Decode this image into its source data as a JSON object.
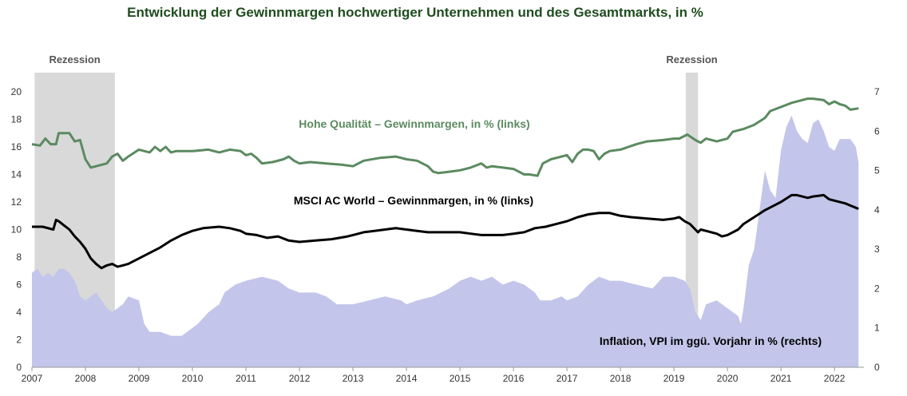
{
  "chart_data": {
    "type": "line",
    "title": "Entwicklung der Gewinnmargen hochwertiger Unternehmen und des Gesamtmarkts, in %",
    "x_range": [
      2007.0,
      2022.55
    ],
    "y_left": {
      "range": [
        0,
        20
      ],
      "ticks": [
        "0",
        "2",
        "4",
        "6",
        "8",
        "10",
        "12",
        "14",
        "16",
        "18",
        "20"
      ]
    },
    "y_right": {
      "range": [
        0,
        7
      ],
      "ticks": [
        "0",
        "1",
        "2",
        "3",
        "4",
        "5",
        "6",
        "7"
      ]
    },
    "x_ticks": [
      "2007",
      "2008",
      "2009",
      "2010",
      "2011",
      "2012",
      "2013",
      "2014",
      "2015",
      "2016",
      "2017",
      "2018",
      "2019",
      "2020",
      "2021",
      "2022"
    ],
    "grid": false,
    "recessions": [
      {
        "label": "Rezession",
        "start": 2007.05,
        "end": 2008.55
      },
      {
        "label": "Rezession",
        "start": 2019.22,
        "end": 2019.45
      }
    ],
    "colors": {
      "quality": "#5b8a60",
      "msci": "#000000",
      "inflation": "#c3c6ea",
      "recession": "#d9d9d9"
    },
    "series": [
      {
        "name": "Hohe Qualität – Gewinnmargen, in % (links)",
        "axis": "left",
        "color": "#5b8a60",
        "x": [
          2007.0,
          2007.15,
          2007.25,
          2007.35,
          2007.45,
          2007.5,
          2007.6,
          2007.7,
          2007.8,
          2007.9,
          2008.0,
          2008.1,
          2008.2,
          2008.3,
          2008.4,
          2008.5,
          2008.6,
          2008.7,
          2008.8,
          2009.0,
          2009.2,
          2009.3,
          2009.4,
          2009.5,
          2009.6,
          2009.7,
          2010.0,
          2010.3,
          2010.5,
          2010.7,
          2010.9,
          2011.0,
          2011.1,
          2011.2,
          2011.3,
          2011.5,
          2011.7,
          2011.8,
          2011.9,
          2012.0,
          2012.2,
          2012.5,
          2012.8,
          2013.0,
          2013.2,
          2013.5,
          2013.8,
          2014.0,
          2014.2,
          2014.4,
          2014.5,
          2014.6,
          2014.8,
          2015.0,
          2015.2,
          2015.4,
          2015.5,
          2015.6,
          2015.8,
          2016.0,
          2016.2,
          2016.3,
          2016.45,
          2016.55,
          2016.7,
          2016.9,
          2017.0,
          2017.1,
          2017.2,
          2017.3,
          2017.4,
          2017.5,
          2017.6,
          2017.7,
          2017.8,
          2018.0,
          2018.3,
          2018.5,
          2018.8,
          2019.0,
          2019.1,
          2019.25,
          2019.4,
          2019.5,
          2019.6,
          2019.8,
          2020.0,
          2020.1,
          2020.3,
          2020.5,
          2020.7,
          2020.8,
          2021.0,
          2021.2,
          2021.3,
          2021.5,
          2021.6,
          2021.8,
          2021.9,
          2022.0,
          2022.1,
          2022.2,
          2022.3,
          2022.45
        ],
        "y": [
          16.2,
          16.1,
          16.6,
          16.2,
          16.2,
          17.0,
          17.0,
          17.0,
          16.4,
          16.5,
          15.1,
          14.5,
          14.6,
          14.7,
          14.8,
          15.3,
          15.5,
          15.0,
          15.3,
          15.8,
          15.6,
          16.0,
          15.7,
          16.0,
          15.6,
          15.7,
          15.7,
          15.8,
          15.6,
          15.8,
          15.7,
          15.4,
          15.5,
          15.2,
          14.8,
          14.9,
          15.1,
          15.3,
          15.0,
          14.8,
          14.9,
          14.8,
          14.7,
          14.6,
          15.0,
          15.2,
          15.3,
          15.1,
          15.0,
          14.6,
          14.2,
          14.1,
          14.2,
          14.3,
          14.5,
          14.8,
          14.5,
          14.6,
          14.5,
          14.4,
          14.0,
          14.0,
          13.9,
          14.8,
          15.1,
          15.3,
          15.4,
          14.9,
          15.5,
          15.8,
          15.8,
          15.7,
          15.1,
          15.5,
          15.7,
          15.8,
          16.2,
          16.4,
          16.5,
          16.6,
          16.6,
          16.9,
          16.5,
          16.3,
          16.6,
          16.4,
          16.6,
          17.1,
          17.3,
          17.6,
          18.1,
          18.6,
          18.9,
          19.2,
          19.3,
          19.5,
          19.5,
          19.4,
          19.1,
          19.3,
          19.1,
          19.0,
          18.7,
          18.8
        ]
      },
      {
        "name": "MSCI AC World – Gewinnmargen, in % (links)",
        "axis": "left",
        "color": "#000000",
        "x": [
          2007.0,
          2007.2,
          2007.4,
          2007.45,
          2007.5,
          2007.6,
          2007.7,
          2007.8,
          2007.9,
          2008.0,
          2008.1,
          2008.2,
          2008.3,
          2008.4,
          2008.5,
          2008.6,
          2008.7,
          2008.8,
          2009.0,
          2009.2,
          2009.4,
          2009.6,
          2009.8,
          2010.0,
          2010.2,
          2010.5,
          2010.7,
          2010.9,
          2011.0,
          2011.2,
          2011.4,
          2011.6,
          2011.8,
          2012.0,
          2012.3,
          2012.6,
          2012.9,
          2013.0,
          2013.2,
          2013.4,
          2013.6,
          2013.8,
          2014.0,
          2014.2,
          2014.4,
          2014.6,
          2014.8,
          2015.0,
          2015.2,
          2015.4,
          2015.6,
          2015.8,
          2016.0,
          2016.2,
          2016.4,
          2016.6,
          2016.8,
          2017.0,
          2017.2,
          2017.4,
          2017.6,
          2017.8,
          2018.0,
          2018.2,
          2018.5,
          2018.8,
          2019.0,
          2019.1,
          2019.2,
          2019.3,
          2019.4,
          2019.45,
          2019.5,
          2019.6,
          2019.8,
          2019.9,
          2020.0,
          2020.2,
          2020.3,
          2020.5,
          2020.7,
          2020.9,
          2021.0,
          2021.2,
          2021.3,
          2021.5,
          2021.6,
          2021.8,
          2021.9,
          2022.0,
          2022.2,
          2022.45
        ],
        "y": [
          10.2,
          10.2,
          10.0,
          10.7,
          10.6,
          10.3,
          10.0,
          9.5,
          9.1,
          8.6,
          7.9,
          7.5,
          7.2,
          7.4,
          7.5,
          7.3,
          7.4,
          7.5,
          7.9,
          8.3,
          8.7,
          9.2,
          9.6,
          9.9,
          10.1,
          10.2,
          10.1,
          9.9,
          9.7,
          9.6,
          9.4,
          9.5,
          9.2,
          9.1,
          9.2,
          9.3,
          9.5,
          9.6,
          9.8,
          9.9,
          10.0,
          10.1,
          10.0,
          9.9,
          9.8,
          9.8,
          9.8,
          9.8,
          9.7,
          9.6,
          9.6,
          9.6,
          9.7,
          9.8,
          10.1,
          10.2,
          10.4,
          10.6,
          10.9,
          11.1,
          11.2,
          11.2,
          11.0,
          10.9,
          10.8,
          10.7,
          10.8,
          10.9,
          10.6,
          10.4,
          10.0,
          9.8,
          10.0,
          9.9,
          9.7,
          9.5,
          9.6,
          10.0,
          10.4,
          10.9,
          11.4,
          11.8,
          12.0,
          12.5,
          12.5,
          12.3,
          12.4,
          12.5,
          12.2,
          12.1,
          11.9,
          11.5
        ]
      },
      {
        "name": "Inflation, VPI im ggü. Vorjahr in % (rechts)",
        "axis": "right",
        "type": "area",
        "color": "#c3c6ea",
        "x": [
          2007.0,
          2007.1,
          2007.2,
          2007.3,
          2007.4,
          2007.5,
          2007.6,
          2007.7,
          2007.8,
          2007.9,
          2008.0,
          2008.1,
          2008.2,
          2008.3,
          2008.4,
          2008.5,
          2008.6,
          2008.7,
          2008.8,
          2009.0,
          2009.1,
          2009.2,
          2009.3,
          2009.4,
          2009.6,
          2009.8,
          2010.0,
          2010.1,
          2010.3,
          2010.5,
          2010.6,
          2010.8,
          2011.0,
          2011.3,
          2011.6,
          2011.8,
          2012.0,
          2012.3,
          2012.5,
          2012.7,
          2013.0,
          2013.3,
          2013.6,
          2013.9,
          2014.0,
          2014.2,
          2014.5,
          2014.8,
          2015.0,
          2015.2,
          2015.4,
          2015.6,
          2015.8,
          2016.0,
          2016.2,
          2016.4,
          2016.5,
          2016.7,
          2016.9,
          2017.0,
          2017.2,
          2017.4,
          2017.6,
          2017.8,
          2018.0,
          2018.3,
          2018.6,
          2018.8,
          2019.0,
          2019.2,
          2019.3,
          2019.4,
          2019.5,
          2019.6,
          2019.8,
          2020.0,
          2020.2,
          2020.25,
          2020.3,
          2020.4,
          2020.5,
          2020.6,
          2020.7,
          2020.8,
          2020.9,
          2021.0,
          2021.1,
          2021.2,
          2021.3,
          2021.4,
          2021.5,
          2021.6,
          2021.7,
          2021.8,
          2021.9,
          2022.0,
          2022.1,
          2022.2,
          2022.3,
          2022.4,
          2022.45
        ],
        "y": [
          2.4,
          2.5,
          2.3,
          2.4,
          2.3,
          2.5,
          2.5,
          2.4,
          2.2,
          1.8,
          1.7,
          1.8,
          1.9,
          1.7,
          1.5,
          1.4,
          1.5,
          1.6,
          1.8,
          1.7,
          1.1,
          0.9,
          0.9,
          0.9,
          0.8,
          0.8,
          1.0,
          1.1,
          1.4,
          1.6,
          1.9,
          2.1,
          2.2,
          2.3,
          2.2,
          2.0,
          1.9,
          1.9,
          1.8,
          1.6,
          1.6,
          1.7,
          1.8,
          1.7,
          1.6,
          1.7,
          1.8,
          2.0,
          2.2,
          2.3,
          2.2,
          2.3,
          2.1,
          2.2,
          2.1,
          1.9,
          1.7,
          1.7,
          1.8,
          1.7,
          1.8,
          2.1,
          2.3,
          2.2,
          2.2,
          2.1,
          2.0,
          2.3,
          2.3,
          2.2,
          2.0,
          1.4,
          1.2,
          1.6,
          1.7,
          1.5,
          1.3,
          1.1,
          1.5,
          2.6,
          3.0,
          4.0,
          5.0,
          4.5,
          4.3,
          5.5,
          6.1,
          6.4,
          6.0,
          5.8,
          5.7,
          6.2,
          6.3,
          6.0,
          5.6,
          5.5,
          5.8,
          5.8,
          5.8,
          5.6,
          5.2
        ]
      }
    ]
  }
}
